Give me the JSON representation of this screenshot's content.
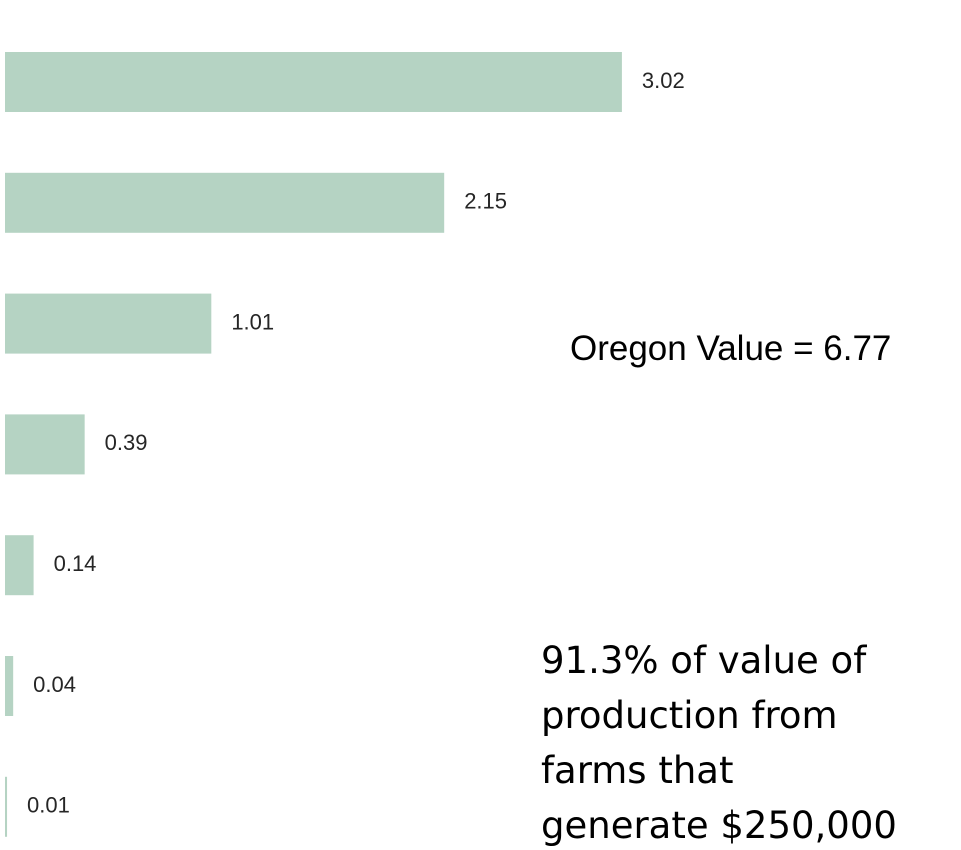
{
  "chart_data": {
    "type": "bar",
    "orientation": "horizontal",
    "categories": [
      null,
      null,
      null,
      null,
      null,
      null,
      null
    ],
    "values": [
      3.02,
      2.15,
      1.01,
      0.39,
      0.14,
      0.04,
      0.01
    ],
    "color": "#b5d3c3",
    "xlim": [
      0,
      4.68
    ],
    "annotation": "Oregon Value = 6.77",
    "note_lines": [
      "91.3% of value of",
      "production from",
      "farms that",
      "generate  $250,000"
    ]
  }
}
